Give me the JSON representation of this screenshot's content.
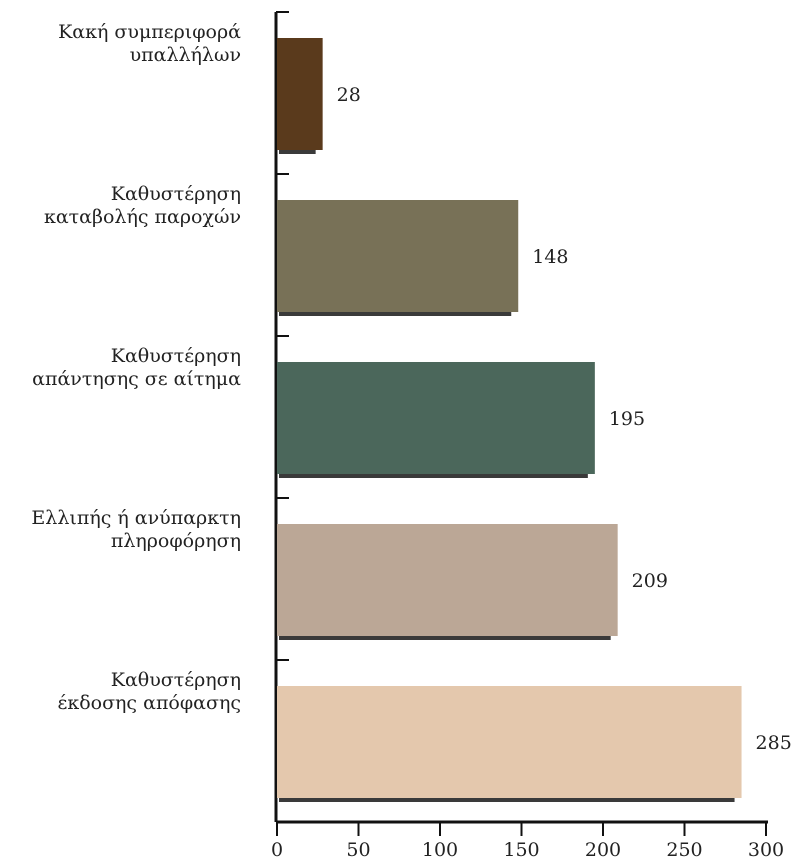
{
  "chart_data": {
    "type": "bar",
    "orientation": "horizontal",
    "categories": [
      [
        "Κακή συμπεριφορά",
        "υπαλλήλων"
      ],
      [
        "Καθυστέρηση",
        "καταβολής παροχών"
      ],
      [
        "Καθυστέρηση",
        "απάντησης σε αίτημα"
      ],
      [
        "Ελλιπής ή ανύπαρκτη",
        "πληροφόρηση"
      ],
      [
        "Καθυστέρηση",
        "έκδοσης απόφασης"
      ]
    ],
    "values": [
      28,
      148,
      195,
      209,
      285
    ],
    "colors": [
      "#5a3a1c",
      "#787157",
      "#4b675b",
      "#bba796",
      "#e4c8ad"
    ],
    "shadow_color": "#3a3a3a",
    "xlim": [
      0,
      300
    ],
    "xticks": [
      0,
      50,
      100,
      150,
      200,
      250,
      300
    ],
    "title": "",
    "xlabel": "",
    "ylabel": "",
    "grid": false,
    "legend": "none"
  }
}
